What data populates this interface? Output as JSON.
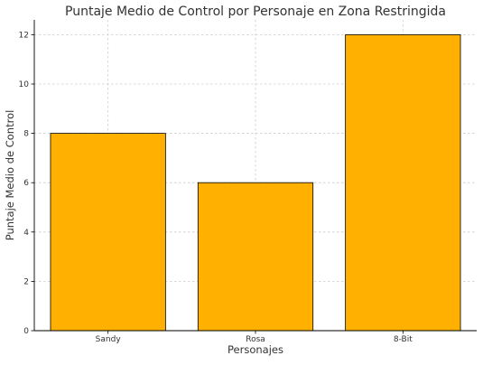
{
  "chart_data": {
    "type": "bar",
    "title": "Puntaje Medio de Control por Personaje en Zona Restringida",
    "xlabel": "Personajes",
    "ylabel": "Puntaje Medio de Control",
    "categories": [
      "Sandy",
      "Rosa",
      "8-Bit"
    ],
    "values": [
      8,
      6,
      12
    ],
    "ylim": [
      0,
      12.6
    ],
    "yticks": [
      0,
      2,
      4,
      6,
      8,
      10,
      12
    ],
    "grid": true,
    "bar_color": "#FFB000"
  }
}
